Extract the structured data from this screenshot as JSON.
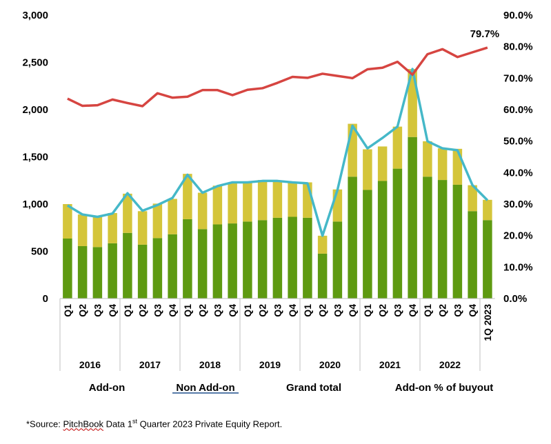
{
  "chart_data": {
    "type": "bar",
    "stacked": true,
    "categories": [
      "Q1",
      "Q2",
      "Q3",
      "Q4",
      "Q1",
      "Q2",
      "Q3",
      "Q4",
      "Q1",
      "Q2",
      "Q3",
      "Q4",
      "Q1",
      "Q2",
      "Q3",
      "Q4",
      "Q1",
      "Q2",
      "Q3",
      "Q4",
      "Q1",
      "Q2",
      "Q3",
      "Q4",
      "Q1",
      "Q2",
      "Q3",
      "Q4",
      "1Q 2023"
    ],
    "year_groups": [
      {
        "label": "2016",
        "count": 4
      },
      {
        "label": "2017",
        "count": 4
      },
      {
        "label": "2018",
        "count": 4
      },
      {
        "label": "2019",
        "count": 4
      },
      {
        "label": "2020",
        "count": 4
      },
      {
        "label": "2021",
        "count": 4
      },
      {
        "label": "2022",
        "count": 4
      },
      {
        "label": "",
        "count": 1
      }
    ],
    "series": [
      {
        "name": "Add-on",
        "type": "bar",
        "axis": "left",
        "color": "#5e9a11",
        "values": [
          635,
          555,
          545,
          585,
          695,
          570,
          640,
          680,
          840,
          735,
          785,
          795,
          815,
          830,
          855,
          865,
          855,
          475,
          815,
          1290,
          1150,
          1245,
          1375,
          1710,
          1290,
          1255,
          1205,
          925,
          830
        ]
      },
      {
        "name": "Non Add-on",
        "type": "bar",
        "axis": "left",
        "color": "#d4c53a",
        "values": [
          365,
          335,
          320,
          320,
          415,
          355,
          365,
          375,
          480,
          385,
          410,
          435,
          425,
          425,
          395,
          360,
          375,
          190,
          340,
          560,
          430,
          365,
          445,
          720,
          375,
          335,
          380,
          275,
          215
        ]
      },
      {
        "name": "Grand total",
        "type": "line",
        "axis": "left",
        "color": "#45b8c8",
        "values": [
          985,
          890,
          865,
          900,
          1115,
          930,
          990,
          1065,
          1310,
          1120,
          1190,
          1230,
          1230,
          1245,
          1245,
          1230,
          1220,
          665,
          1150,
          1830,
          1590,
          1700,
          1820,
          2430,
          1665,
          1590,
          1570,
          1200,
          1040
        ]
      },
      {
        "name": "Add-on % of buyout",
        "type": "line",
        "axis": "right",
        "color": "#d64541",
        "values": [
          63.5,
          61.2,
          61.4,
          63.2,
          62.1,
          61.1,
          65.2,
          63.8,
          64.1,
          66.2,
          66.2,
          64.6,
          66.3,
          66.8,
          68.5,
          70.4,
          70.1,
          71.4,
          70.7,
          70.0,
          72.8,
          73.3,
          75.2,
          71.1,
          77.6,
          79.2,
          76.7,
          78.2,
          79.7
        ]
      }
    ],
    "ylim_left": [
      0,
      3000
    ],
    "ylim_right": [
      0,
      90
    ],
    "yticks_left": [
      "0",
      "500",
      "1,000",
      "1,500",
      "2,000",
      "2,500",
      "3,000"
    ],
    "yticks_right": [
      "0.0%",
      "10.0%",
      "20.0%",
      "30.0%",
      "40.0%",
      "50.0%",
      "60.0%",
      "70.0%",
      "80.0%",
      "90.0%"
    ],
    "annotation": "79.7%",
    "legend": {
      "placement": "bottom",
      "items": [
        "Add-on",
        "Non Add-on",
        "Grand total",
        "Add-on % of buyout"
      ]
    },
    "grid": false
  },
  "source_prefix": "*Source: ",
  "source_name": "PitchBook",
  "source_rest_a": " Data 1",
  "source_sup": "st",
  "source_rest_b": " Quarter 2023 Private Equity Report."
}
